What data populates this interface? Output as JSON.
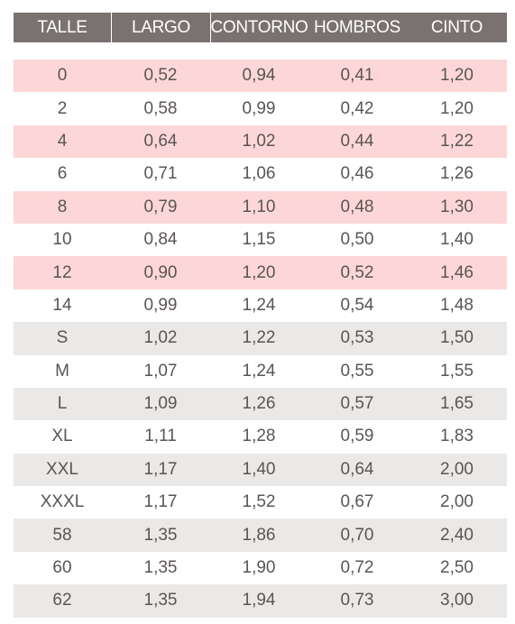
{
  "headers": [
    "TALLE",
    "LARGO",
    "CONTORNO",
    "HOMBROS",
    "CINTO"
  ],
  "rows": [
    {
      "style": "pink",
      "cells": [
        "0",
        "0,52",
        "0,94",
        "0,41",
        "1,20"
      ]
    },
    {
      "style": "white",
      "cells": [
        "2",
        "0,58",
        "0,99",
        "0,42",
        "1,20"
      ]
    },
    {
      "style": "pink",
      "cells": [
        "4",
        "0,64",
        "1,02",
        "0,44",
        "1,22"
      ]
    },
    {
      "style": "white",
      "cells": [
        "6",
        "0,71",
        "1,06",
        "0,46",
        "1,26"
      ]
    },
    {
      "style": "pink",
      "cells": [
        "8",
        "0,79",
        "1,10",
        "0,48",
        "1,30"
      ]
    },
    {
      "style": "white",
      "cells": [
        "10",
        "0,84",
        "1,15",
        "0,50",
        "1,40"
      ]
    },
    {
      "style": "pink",
      "cells": [
        "12",
        "0,90",
        "1,20",
        "0,52",
        "1,46"
      ]
    },
    {
      "style": "white",
      "cells": [
        "14",
        "0,99",
        "1,24",
        "0,54",
        "1,48"
      ]
    },
    {
      "style": "grey",
      "cells": [
        "S",
        "1,02",
        "1,22",
        "0,53",
        "1,50"
      ]
    },
    {
      "style": "white",
      "cells": [
        "M",
        "1,07",
        "1,24",
        "0,55",
        "1,55"
      ]
    },
    {
      "style": "grey",
      "cells": [
        "L",
        "1,09",
        "1,26",
        "0,57",
        "1,65"
      ]
    },
    {
      "style": "white",
      "cells": [
        "XL",
        "1,11",
        "1,28",
        "0,59",
        "1,83"
      ]
    },
    {
      "style": "grey",
      "cells": [
        "XXL",
        "1,17",
        "1,40",
        "0,64",
        "2,00"
      ]
    },
    {
      "style": "white",
      "cells": [
        "XXXL",
        "1,17",
        "1,52",
        "0,67",
        "2,00"
      ]
    },
    {
      "style": "grey",
      "cells": [
        "58",
        "1,35",
        "1,86",
        "0,70",
        "2,40"
      ]
    },
    {
      "style": "white",
      "cells": [
        "60",
        "1,35",
        "1,90",
        "0,72",
        "2,50"
      ]
    },
    {
      "style": "grey",
      "cells": [
        "62",
        "1,35",
        "1,94",
        "0,73",
        "3,00"
      ]
    }
  ],
  "colors": {
    "header_bg": "#7a7270",
    "header_text": "#ffffff",
    "row_pink": "#fdd7d7",
    "row_grey": "#ebe9e8",
    "row_white": "#ffffff",
    "cell_text": "#5a5554"
  }
}
